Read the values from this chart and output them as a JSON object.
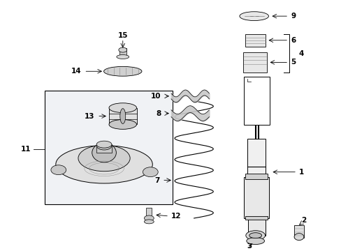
{
  "bg_color": "#ffffff",
  "line_color": "#000000",
  "text_color": "#000000",
  "fig_w": 4.89,
  "fig_h": 3.6,
  "dpi": 100
}
